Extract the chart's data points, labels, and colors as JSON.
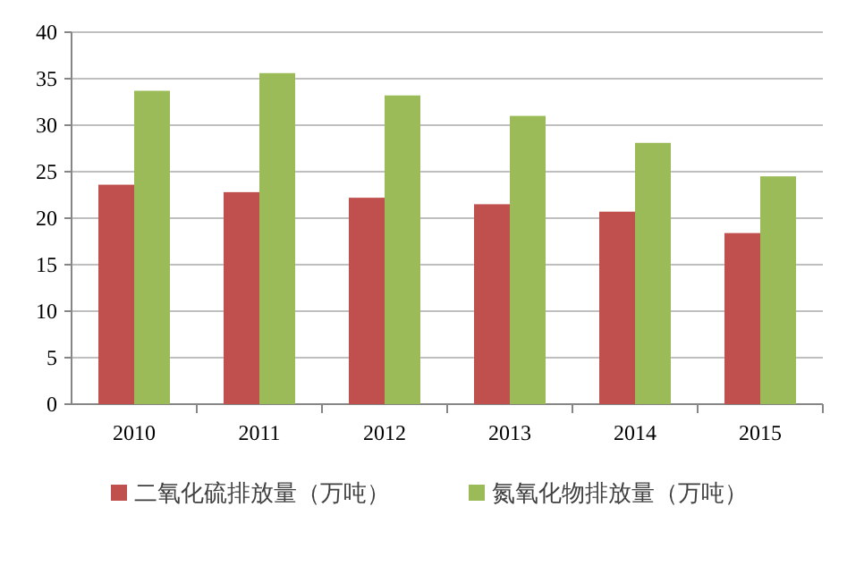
{
  "chart_data": {
    "type": "bar",
    "categories": [
      "2010",
      "2011",
      "2012",
      "2013",
      "2014",
      "2015"
    ],
    "series": [
      {
        "name": "二氧化硫排放量（万吨）",
        "color": "#c0504d",
        "values": [
          23.6,
          22.8,
          22.2,
          21.5,
          20.7,
          18.4
        ]
      },
      {
        "name": "氮氧化物排放量（万吨）",
        "color": "#9bbb59",
        "values": [
          33.7,
          35.6,
          33.2,
          31.0,
          28.1,
          24.5
        ]
      }
    ],
    "ylim": [
      0,
      40
    ],
    "yticks": [
      0,
      5,
      10,
      15,
      20,
      25,
      30,
      35,
      40
    ],
    "grid": "y",
    "legend": "bottom"
  }
}
